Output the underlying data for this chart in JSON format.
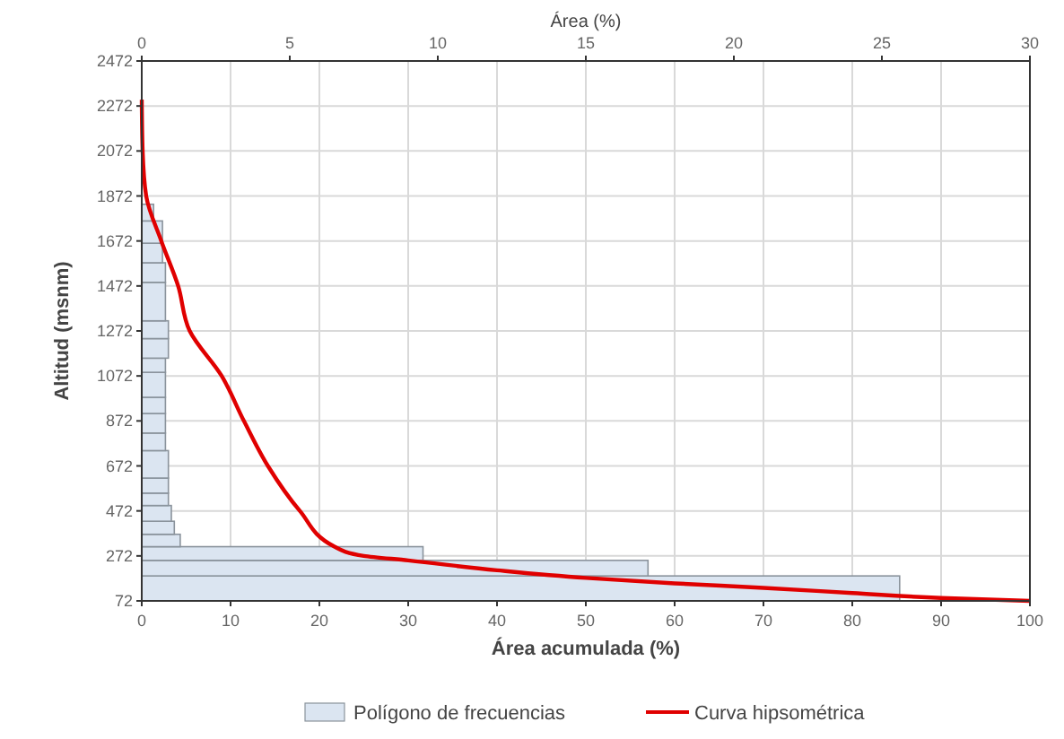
{
  "chart_data": {
    "type": "histogram",
    "orientation": "horizontal",
    "xlabel": "Área acumulada (%)",
    "x2label": "Área (%)",
    "ylabel": "Altitud (msnm)",
    "xlim": [
      0,
      100
    ],
    "xticks": [
      0,
      10,
      20,
      30,
      40,
      50,
      60,
      70,
      80,
      90,
      100
    ],
    "x2lim": [
      0,
      30
    ],
    "x2ticks": [
      0,
      5,
      10,
      15,
      20,
      25,
      30
    ],
    "ylim": [
      72,
      2472
    ],
    "yticks": [
      72,
      272,
      472,
      672,
      872,
      1072,
      1272,
      1472,
      1672,
      1872,
      2072,
      2272,
      2472
    ],
    "grid": true,
    "legend": "bottom",
    "series": [
      {
        "axis": "x2",
        "name": "Polígono de frecuencias",
        "color": "#dbe5f1",
        "bins": [
          72,
          183,
          252,
          313,
          368,
          426,
          496,
          551,
          618,
          740,
          818,
          905,
          977,
          1088,
          1151,
          1238,
          1317,
          1488,
          1575,
          1662,
          1761,
          1835
        ],
        "values": [
          25.6,
          17.1,
          9.5,
          1.3,
          1.1,
          1.0,
          0.9,
          0.9,
          0.9,
          0.8,
          0.8,
          0.8,
          0.8,
          0.8,
          0.9,
          0.9,
          0.8,
          0.8,
          0.7,
          0.7,
          0.4
        ]
      },
      {
        "type": "line",
        "name": "Curva hipsométrica",
        "color": "#e00000",
        "x": [
          2300,
          2072,
          1872,
          1672,
          1472,
          1272,
          1072,
          872,
          672,
          472,
          313,
          272,
          252,
          208,
          174,
          150,
          130,
          107,
          85,
          72
        ],
        "values": [
          0,
          0.1,
          0.5,
          2.2,
          4.1,
          5.4,
          9,
          11.5,
          14.2,
          17.8,
          21.7,
          25,
          30,
          40,
          50,
          60,
          70,
          80,
          90,
          100
        ]
      }
    ]
  }
}
